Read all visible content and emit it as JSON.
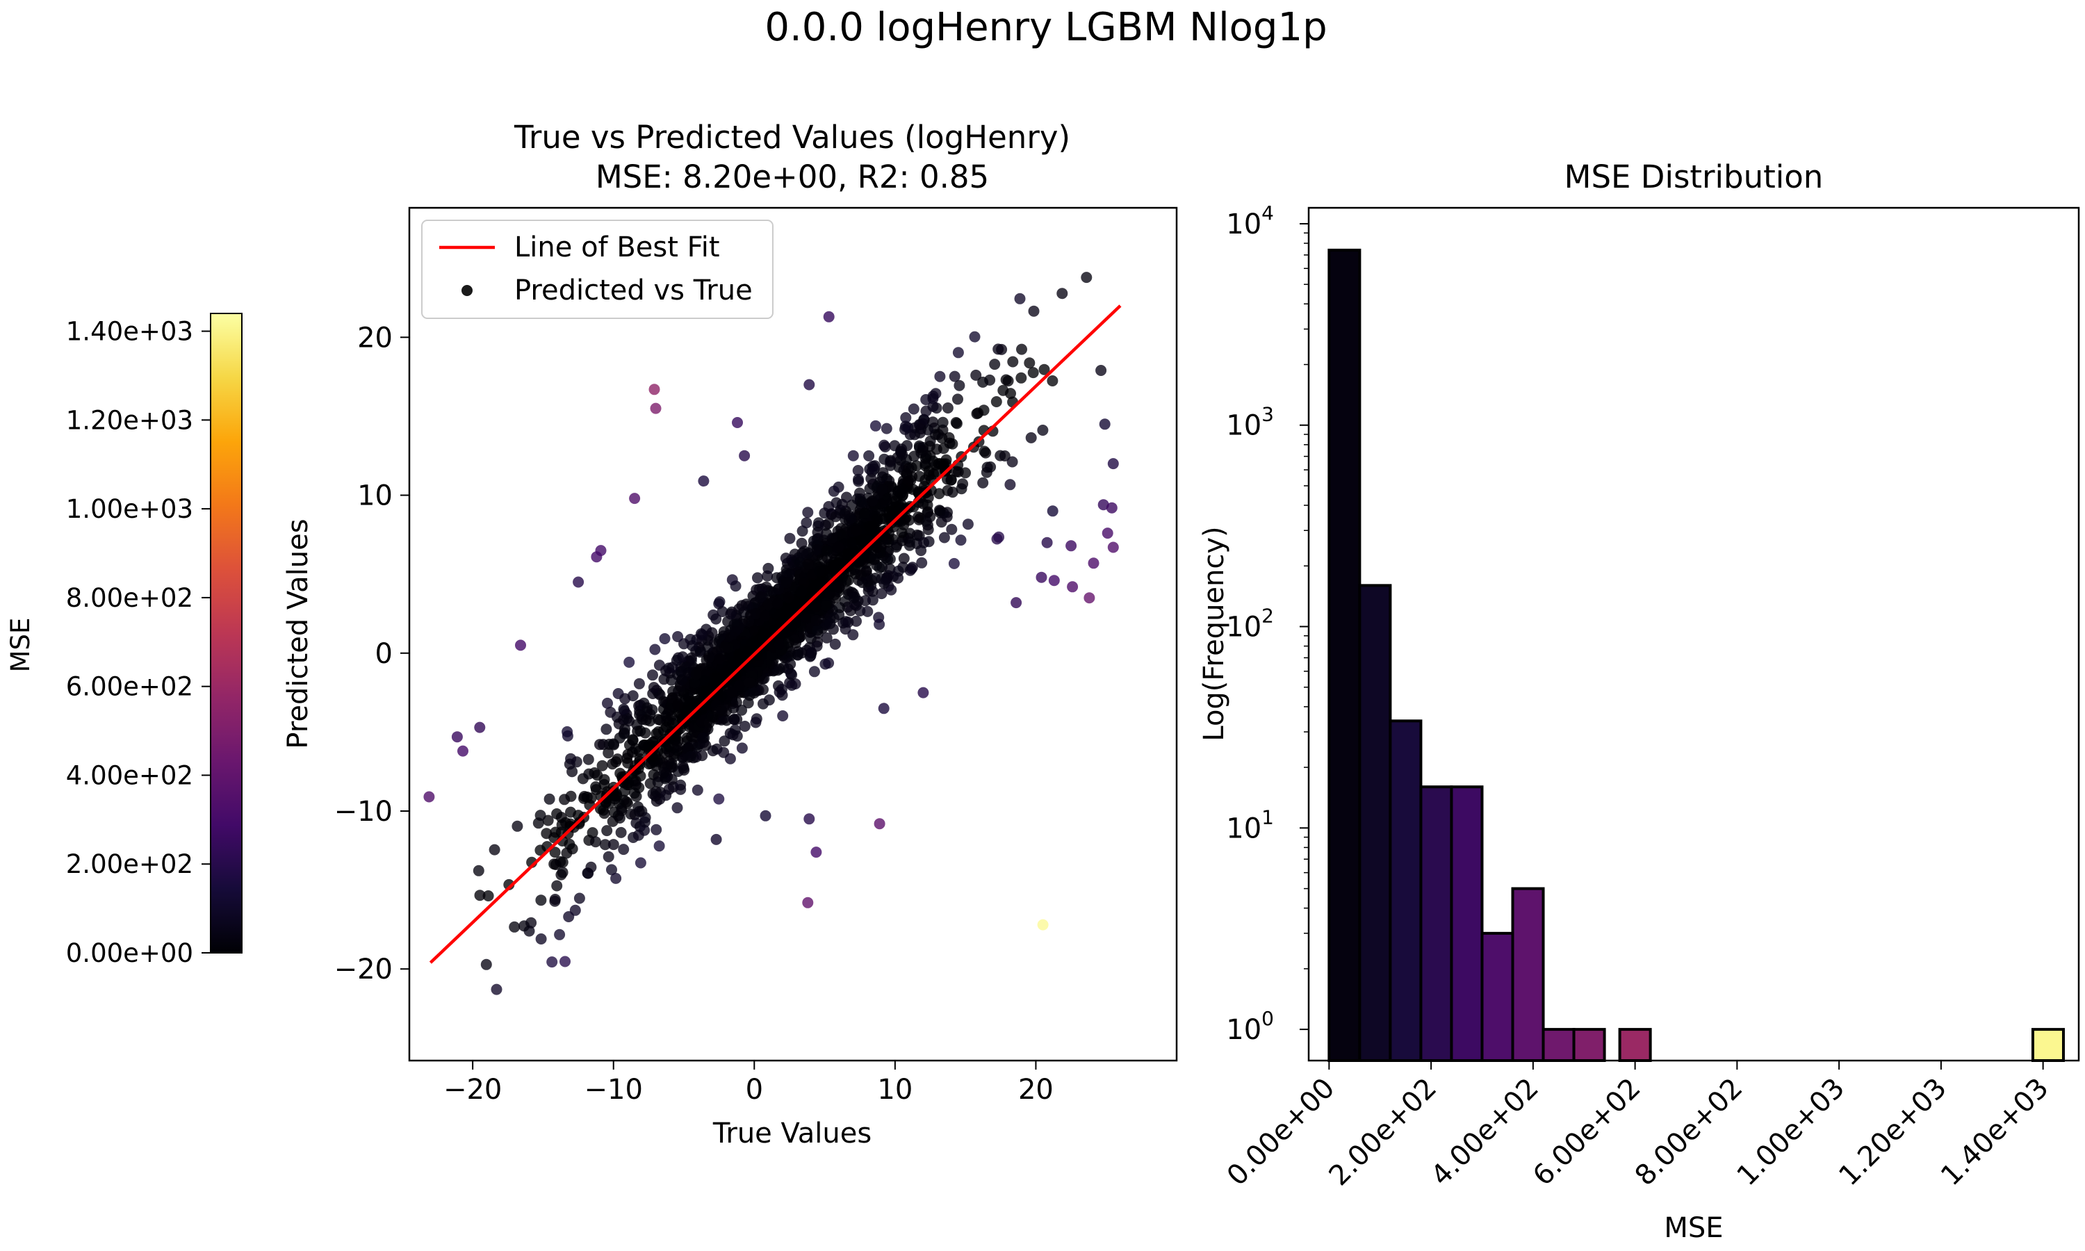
{
  "suptitle": "0.0.0 logHenry LGBM Nlog1p",
  "colorbar": {
    "label": "MSE",
    "ticks": [
      0,
      200,
      400,
      600,
      800,
      1000,
      1200,
      1400
    ],
    "tick_labels": [
      "0.00e+00",
      "2.00e+02",
      "4.00e+02",
      "6.00e+02",
      "8.00e+02",
      "1.00e+03",
      "1.20e+03",
      "1.40e+03"
    ],
    "range": [
      0,
      1440
    ],
    "colormap": "inferno"
  },
  "chart_data": [
    {
      "type": "scatter",
      "title": "True vs Predicted Values (logHenry)",
      "subtitle": "MSE: 8.20e+00, R2: 0.85",
      "xlabel": "True Values",
      "ylabel": "Predicted Values",
      "xlim": [
        -24.5,
        30
      ],
      "ylim": [
        -25.8,
        28.2
      ],
      "xticks": [
        -20,
        -10,
        0,
        10,
        20
      ],
      "xtick_labels": [
        "−20",
        "−10",
        "0",
        "10",
        "20"
      ],
      "yticks": [
        -20,
        -10,
        0,
        10,
        20
      ],
      "ytick_labels": [
        "−20",
        "−10",
        "0",
        "10",
        "20"
      ],
      "legend": {
        "position": "top-left",
        "entries": [
          "Line of Best Fit",
          "Predicted vs True"
        ]
      },
      "best_fit_line": {
        "name": "Line of Best Fit",
        "color": "#ff0000",
        "x": [
          -23.0,
          26.0
        ],
        "y": [
          -19.6,
          22.0
        ]
      },
      "series": [
        {
          "name": "Predicted vs True",
          "color_by": "MSE",
          "point_count_approx": 7700,
          "dense_cloud": {
            "x_range": [
              -22,
              26
            ],
            "slope": 0.87,
            "intercept": 0.3,
            "note_spread": "residual std about 3"
          },
          "outliers": [
            {
              "x": 5.3,
              "y": 21.3,
              "mse": 250
            },
            {
              "x": 3.9,
              "y": 17.0,
              "mse": 180
            },
            {
              "x": -7.1,
              "y": 16.7,
              "mse": 560
            },
            {
              "x": -7.0,
              "y": 15.5,
              "mse": 500
            },
            {
              "x": -1.2,
              "y": 14.6,
              "mse": 250
            },
            {
              "x": -0.7,
              "y": 12.5,
              "mse": 200
            },
            {
              "x": -8.5,
              "y": 9.8,
              "mse": 340
            },
            {
              "x": -10.9,
              "y": 6.5,
              "mse": 300
            },
            {
              "x": -11.2,
              "y": 6.1,
              "mse": 300
            },
            {
              "x": -16.6,
              "y": 0.5,
              "mse": 290
            },
            {
              "x": -19.5,
              "y": -4.7,
              "mse": 240
            },
            {
              "x": -21.1,
              "y": -5.3,
              "mse": 260
            },
            {
              "x": -20.7,
              "y": -6.2,
              "mse": 300
            },
            {
              "x": -23.1,
              "y": -9.1,
              "mse": 340
            },
            {
              "x": 3.9,
              "y": -10.5,
              "mse": 200
            },
            {
              "x": 4.4,
              "y": -12.6,
              "mse": 300
            },
            {
              "x": 8.9,
              "y": -10.8,
              "mse": 380
            },
            {
              "x": 3.8,
              "y": -15.8,
              "mse": 400
            },
            {
              "x": 20.5,
              "y": -17.2,
              "mse": 1420
            },
            {
              "x": 25.1,
              "y": 7.6,
              "mse": 310
            },
            {
              "x": 25.5,
              "y": 6.7,
              "mse": 350
            },
            {
              "x": 24.1,
              "y": 5.7,
              "mse": 330
            },
            {
              "x": 22.5,
              "y": 6.8,
              "mse": 270
            },
            {
              "x": 23.8,
              "y": 3.5,
              "mse": 420
            },
            {
              "x": 24.8,
              "y": 9.4,
              "mse": 250
            },
            {
              "x": 25.4,
              "y": 9.2,
              "mse": 270
            },
            {
              "x": 18.6,
              "y": 3.2,
              "mse": 240
            },
            {
              "x": 20.4,
              "y": 4.8,
              "mse": 260
            },
            {
              "x": 21.3,
              "y": 4.6,
              "mse": 300
            },
            {
              "x": 22.6,
              "y": 4.2,
              "mse": 340
            },
            {
              "x": 20.8,
              "y": 7.0,
              "mse": 200
            },
            {
              "x": 21.2,
              "y": 9.0,
              "mse": 140
            },
            {
              "x": 24.9,
              "y": 14.5,
              "mse": 130
            },
            {
              "x": 25.5,
              "y": 12.0,
              "mse": 180
            },
            {
              "x": 0.8,
              "y": -10.3,
              "mse": 130
            },
            {
              "x": -2.7,
              "y": -11.8,
              "mse": 110
            },
            {
              "x": -12.5,
              "y": 4.5,
              "mse": 200
            },
            {
              "x": -3.6,
              "y": 10.9,
              "mse": 160
            },
            {
              "x": 12.0,
              "y": -2.5,
              "mse": 200
            },
            {
              "x": 9.2,
              "y": -3.5,
              "mse": 160
            }
          ]
        }
      ]
    },
    {
      "type": "bar",
      "title": "MSE Distribution",
      "xlabel": "MSE",
      "ylabel": "Log(Frequency)",
      "yscale": "log",
      "ylim": [
        0.7,
        12000
      ],
      "xlim": [
        -40,
        1470
      ],
      "yticks": [
        1,
        10,
        100,
        1000,
        10000
      ],
      "ytick_labels": [
        [
          "10",
          "0"
        ],
        [
          "10",
          "1"
        ],
        [
          "10",
          "2"
        ],
        [
          "10",
          "3"
        ],
        [
          "10",
          "4"
        ]
      ],
      "xticks": [
        0,
        200,
        400,
        600,
        800,
        1000,
        1200,
        1400
      ],
      "xtick_labels": [
        "0.00e+00",
        "2.00e+02",
        "4.00e+02",
        "6.00e+02",
        "8.00e+02",
        "1.00e+03",
        "1.20e+03",
        "1.40e+03"
      ],
      "bin_width": 60,
      "bins": [
        {
          "start": 0,
          "count": 7400
        },
        {
          "start": 60,
          "count": 160
        },
        {
          "start": 120,
          "count": 34
        },
        {
          "start": 180,
          "count": 16
        },
        {
          "start": 240,
          "count": 16
        },
        {
          "start": 300,
          "count": 3
        },
        {
          "start": 360,
          "count": 5
        },
        {
          "start": 420,
          "count": 1
        },
        {
          "start": 480,
          "count": 1
        },
        {
          "start": 570,
          "count": 1
        },
        {
          "start": 1380,
          "count": 1
        }
      ]
    }
  ]
}
